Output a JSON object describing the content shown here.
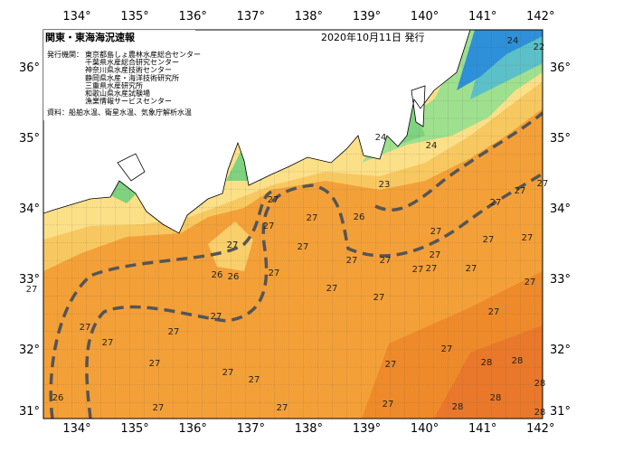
{
  "header": {
    "title": "関東・東海海況速報",
    "date": "2020年10月11日 発行",
    "publisher_label": "発行機関：",
    "publishers": [
      "東京都島しょ農林水産総合センター",
      "千葉県水産総合研究センター",
      "神奈川県水産技術センター",
      "静岡県水産・海洋技術研究所",
      "三重県水産研究所",
      "和歌山県水産試験場",
      "漁業情報サービスセンター"
    ],
    "source": "資料：船舶水温、衛星水温、気象庁解析水温"
  },
  "axes": {
    "lon_labels": [
      "134°",
      "135°",
      "136°",
      "137°",
      "138°",
      "139°",
      "140°",
      "141°",
      "142°"
    ],
    "lat_labels": [
      "36°",
      "35°",
      "34°",
      "33°",
      "32°",
      "31°"
    ]
  },
  "contour_labels": [
    "24",
    "22",
    "24",
    "24",
    "23",
    "26",
    "27",
    "27",
    "27",
    "27",
    "27",
    "27",
    "27",
    "27",
    "27",
    "27",
    "27",
    "27",
    "27",
    "27",
    "27",
    "27",
    "26",
    "26",
    "27",
    "27",
    "27",
    "27",
    "27",
    "27",
    "27",
    "27",
    "27",
    "27",
    "27",
    "27",
    "27",
    "27",
    "27",
    "27",
    "27",
    "27",
    "27",
    "26",
    "28",
    "28",
    "28",
    "28",
    "28",
    "28"
  ]
}
